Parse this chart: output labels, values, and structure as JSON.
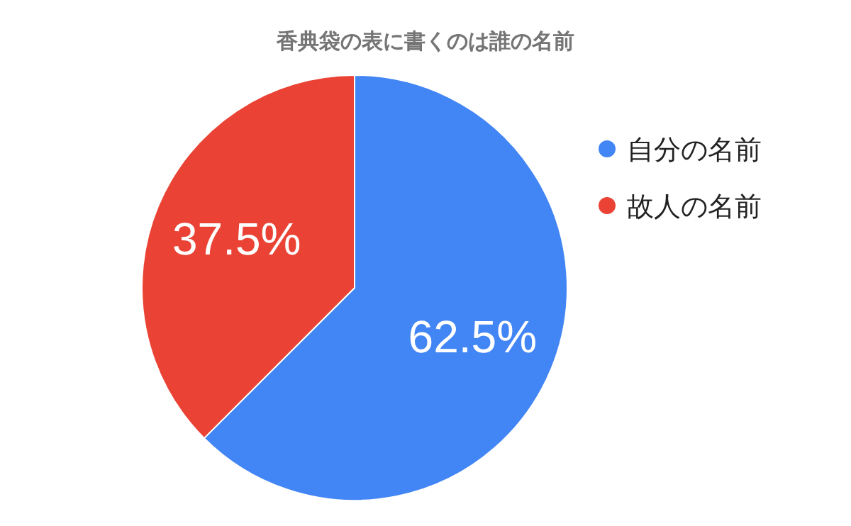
{
  "chart_data": {
    "type": "pie",
    "title": "香典袋の表に書くのは誰の名前",
    "categories": [
      "自分の名前",
      "故人の名前"
    ],
    "values": [
      62.5,
      37.5
    ],
    "colors": [
      "#4285f4",
      "#ea4335"
    ],
    "value_labels": [
      "62.5%",
      "37.5%"
    ],
    "legend": "right"
  }
}
